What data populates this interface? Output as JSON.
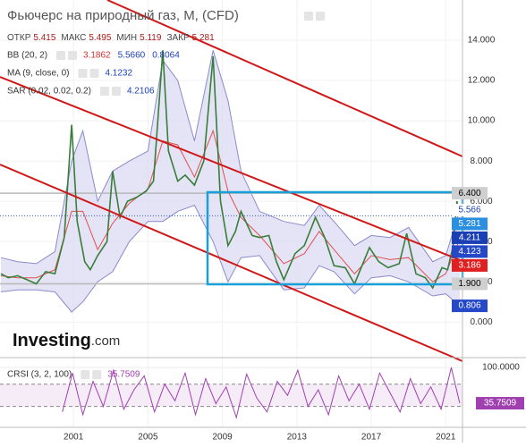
{
  "chart_data": {
    "type": "line",
    "title": "Фьючерс на природный газ, М, (CFD)",
    "ohlc": [
      {
        "label": "ОТКР",
        "value": "5.415"
      },
      {
        "label": "МАКС",
        "value": "5.495"
      },
      {
        "label": "МИН",
        "value": "5.119"
      },
      {
        "label": "ЗАКР",
        "value": "5.281"
      }
    ],
    "indicators": [
      {
        "name": "BB (20, 2)",
        "readings": [
          {
            "text": "3.1862",
            "color": "#d32f2f"
          },
          {
            "text": "5.5660",
            "color": "#1a3fb5"
          },
          {
            "text": "0.8064",
            "color": "#1a3fb5"
          }
        ]
      },
      {
        "name": "MA (9, close, 0)",
        "readings": [
          {
            "text": "4.1232",
            "color": "#1a3fb5"
          }
        ]
      },
      {
        "name": "SAR (0.02, 0.02, 0.2)",
        "readings": [
          {
            "text": "4.2106",
            "color": "#1a3fb5"
          }
        ]
      }
    ],
    "logo": {
      "name": "Investing",
      "suffix": ".com"
    },
    "xlim": [
      1997.05,
      2021.9
    ],
    "xticks": [
      2001,
      2005,
      2009,
      2013,
      2017,
      2021
    ],
    "ylim": [
      -1.5,
      16
    ],
    "yticks": [
      {
        "value": 0,
        "label": "0.000"
      },
      {
        "value": 2,
        "label": "2.000"
      },
      {
        "value": 4,
        "label": "4.000"
      },
      {
        "value": 6,
        "label": "6.000"
      },
      {
        "value": 8,
        "label": "8.000"
      },
      {
        "value": 10,
        "label": "10.000"
      },
      {
        "value": 12,
        "label": "12.000"
      },
      {
        "value": 14,
        "label": "14.000"
      }
    ],
    "price": {
      "color": "#3a7d3a",
      "x": [
        1997.1,
        1997.5,
        1998.0,
        1998.5,
        1999.0,
        1999.5,
        2000.0,
        2000.5,
        2000.9,
        2001.2,
        2001.6,
        2001.9,
        2002.3,
        2002.8,
        2003.1,
        2003.5,
        2003.9,
        2004.4,
        2004.9,
        2005.3,
        2005.8,
        2006.1,
        2006.6,
        2007.0,
        2007.5,
        2008.0,
        2008.5,
        2008.9,
        2009.3,
        2009.7,
        2010.0,
        2010.6,
        2011.0,
        2011.5,
        2011.9,
        2012.3,
        2012.9,
        2013.4,
        2014.0,
        2014.5,
        2015.0,
        2015.6,
        2016.1,
        2016.9,
        2017.4,
        2017.9,
        2018.5,
        2018.9,
        2019.4,
        2019.9,
        2020.3,
        2020.8,
        2021.1,
        2021.4,
        2021.6,
        2021.75
      ],
      "values": [
        2.4,
        2.2,
        2.3,
        2.1,
        1.9,
        2.5,
        2.4,
        4.2,
        9.8,
        5.0,
        3.0,
        2.6,
        3.3,
        4.0,
        7.5,
        5.2,
        6.0,
        6.2,
        6.5,
        7.0,
        13.5,
        8.5,
        7.0,
        7.3,
        6.8,
        8.0,
        13.2,
        6.0,
        3.8,
        4.5,
        5.5,
        4.3,
        4.2,
        4.3,
        3.0,
        2.1,
        3.4,
        3.8,
        5.2,
        4.2,
        2.8,
        2.7,
        1.9,
        3.7,
        3.0,
        2.7,
        2.9,
        4.4,
        2.4,
        2.2,
        1.7,
        2.7,
        2.6,
        3.8,
        6.0,
        5.281
      ]
    },
    "bands": {
      "band_color": "#d9d9f2",
      "line_color": "#8a8acc",
      "ma_color": "#e05050",
      "x": [
        1997.1,
        1998,
        1999,
        2000,
        2000.9,
        2001.5,
        2002.3,
        2003.1,
        2004,
        2005,
        2005.8,
        2006.6,
        2007.5,
        2008.5,
        2009.3,
        2010,
        2011,
        2012.3,
        2013.4,
        2014.2,
        2015,
        2016.1,
        2017,
        2018,
        2019,
        2020.3,
        2021,
        2021.75
      ],
      "upper": [
        3.2,
        3.0,
        2.9,
        3.5,
        8.0,
        9.5,
        6.0,
        7.5,
        8.0,
        8.5,
        13.0,
        12.0,
        9.0,
        13.5,
        11.0,
        7.5,
        5.5,
        5.0,
        4.8,
        5.8,
        5.0,
        3.8,
        4.3,
        4.2,
        4.7,
        3.0,
        3.3,
        5.566
      ],
      "lower": [
        1.5,
        1.6,
        1.6,
        1.5,
        0.5,
        1.0,
        2.0,
        2.5,
        4.0,
        5.0,
        5.0,
        5.5,
        5.8,
        4.0,
        2.0,
        3.2,
        3.3,
        1.6,
        1.7,
        2.8,
        2.5,
        1.4,
        2.2,
        2.3,
        2.0,
        1.3,
        1.4,
        0.806
      ],
      "ma": [
        2.3,
        2.2,
        2.2,
        2.6,
        5.5,
        5.5,
        3.6,
        4.9,
        5.9,
        6.6,
        9.0,
        8.8,
        7.2,
        9.5,
        6.5,
        5.2,
        4.3,
        2.9,
        3.4,
        4.5,
        3.6,
        2.4,
        3.3,
        3.1,
        3.2,
        2.0,
        2.4,
        4.123
      ]
    },
    "levels": [
      6.4,
      1.9
    ],
    "current": 5.281,
    "price_labels": [
      {
        "value": 6.4,
        "label": "6.400",
        "bg": "#cfcfcf",
        "color": "#000000"
      },
      {
        "value": 5.566,
        "label": "5.566",
        "bg": "#ffffff",
        "color": "#1a3fb5"
      },
      {
        "value": 5.281,
        "label": "5.281",
        "bg": "#2a8fe0",
        "color": "#ffffff"
      },
      {
        "value": 4.211,
        "label": "4.211",
        "bg": "#1a3fb5",
        "color": "#ffffff"
      },
      {
        "value": 4.123,
        "label": "4.123",
        "bg": "#2448c8",
        "color": "#ffffff"
      },
      {
        "value": 3.186,
        "label": "3.186",
        "bg": "#e02020",
        "color": "#ffffff"
      },
      {
        "value": 1.9,
        "label": "1.900",
        "bg": "#cfcfcf",
        "color": "#000000"
      },
      {
        "value": 0.806,
        "label": "0.806",
        "bg": "#2448c8",
        "color": "#ffffff"
      }
    ],
    "crsi": {
      "name": "CRSI (3, 2, 100)",
      "reading": "35.7509",
      "color": "#a040b0",
      "ylim": [
        -6,
        113
      ],
      "yticks": [
        {
          "value": 100,
          "label": "100.0000"
        }
      ],
      "levels": [
        70,
        30
      ],
      "last_label": {
        "value": 35.7509,
        "label": "35.7509"
      },
      "x": [
        2000.4,
        2000.95,
        2001.5,
        2002.05,
        2002.6,
        2003.15,
        2003.7,
        2004.25,
        2004.8,
        2005.35,
        2005.9,
        2006.45,
        2007.0,
        2007.55,
        2008.1,
        2008.65,
        2009.2,
        2009.75,
        2010.3,
        2010.85,
        2011.4,
        2011.95,
        2012.5,
        2013.05,
        2013.6,
        2014.15,
        2014.7,
        2015.25,
        2015.8,
        2016.35,
        2016.9,
        2017.45,
        2018.0,
        2018.55,
        2019.1,
        2019.65,
        2020.2,
        2020.75,
        2021.3,
        2021.75
      ],
      "values": [
        20,
        90,
        15,
        75,
        30,
        95,
        25,
        60,
        85,
        20,
        70,
        40,
        90,
        15,
        80,
        35,
        65,
        10,
        88,
        45,
        20,
        75,
        50,
        95,
        30,
        60,
        15,
        85,
        40,
        70,
        25,
        90,
        55,
        20,
        80,
        35,
        65,
        25,
        100,
        35.7509
      ]
    }
  }
}
